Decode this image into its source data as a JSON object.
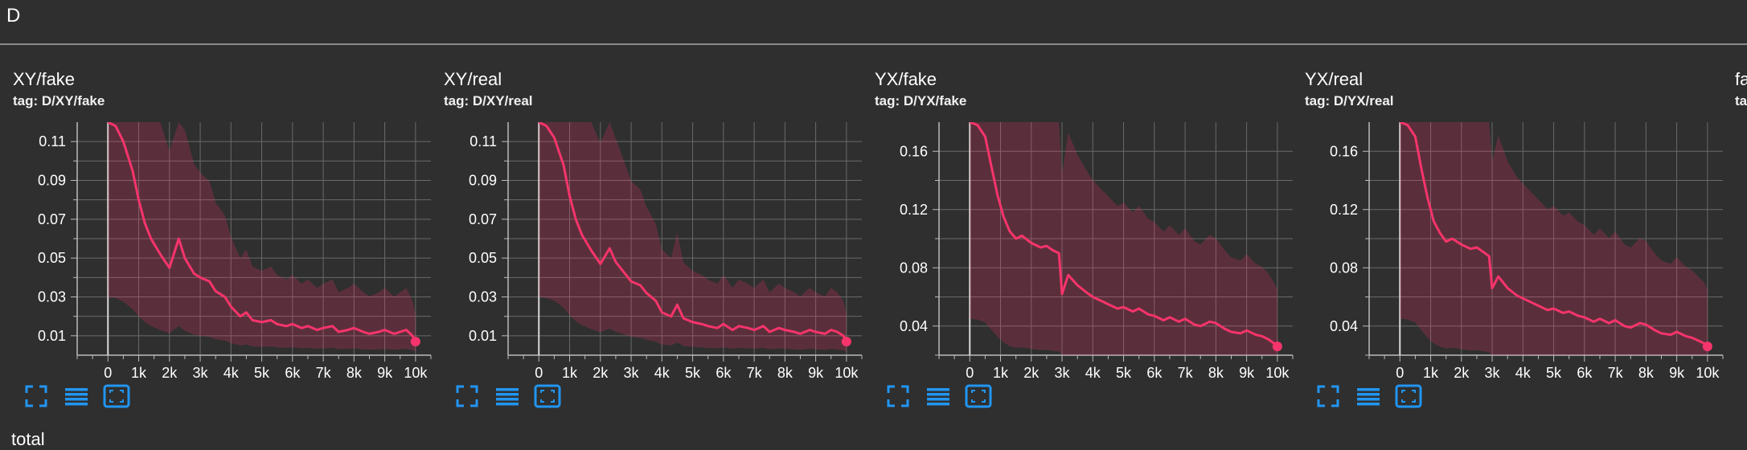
{
  "group": {
    "title": "D"
  },
  "next_group": {
    "title": "total"
  },
  "toolbar": {
    "icons": [
      "fullscreen-icon",
      "toggle-y-log-icon",
      "fit-domain-icon"
    ]
  },
  "colors": {
    "series": "#f7346b",
    "background": "#2f2f2f",
    "grid": "#6a6a6a",
    "toolbar_icon": "#2196f3"
  },
  "cards": [
    {
      "title": "XY/fake",
      "tag": "tag: D/XY/fake",
      "chart_data": {
        "type": "line",
        "series": [
          {
            "x": [
              0,
              250,
              500,
              800,
              1000,
              1200,
              1400,
              1700,
              2000,
              2300,
              2500,
              2800,
              3000,
              3300,
              3500,
              3800,
              4000,
              4300,
              4500,
              4700,
              5000,
              5300,
              5500,
              5800,
              6000,
              6300,
              6500,
              6800,
              7000,
              7300,
              7500,
              7800,
              8000,
              8300,
              8500,
              8800,
              9000,
              9300,
              9500,
              9700,
              9900,
              10000
            ],
            "y": [
              0.12,
              0.118,
              0.11,
              0.095,
              0.08,
              0.068,
              0.06,
              0.052,
              0.045,
              0.06,
              0.05,
              0.042,
              0.04,
              0.038,
              0.033,
              0.03,
              0.025,
              0.02,
              0.022,
              0.018,
              0.017,
              0.018,
              0.016,
              0.015,
              0.016,
              0.014,
              0.015,
              0.013,
              0.014,
              0.015,
              0.012,
              0.013,
              0.014,
              0.012,
              0.011,
              0.012,
              0.013,
              0.011,
              0.012,
              0.013,
              0.01,
              0.007
            ]
          }
        ],
        "xlim": [
          -1000,
          10500
        ],
        "ylim": [
          0.0,
          0.12
        ],
        "x_ticks": [
          0,
          1000,
          2000,
          3000,
          4000,
          5000,
          6000,
          7000,
          8000,
          9000,
          10000
        ],
        "x_tick_labels": [
          "0",
          "1k",
          "2k",
          "3k",
          "4k",
          "5k",
          "6k",
          "7k",
          "8k",
          "9k",
          "10k"
        ],
        "y_ticks": [
          0.01,
          0.03,
          0.05,
          0.07,
          0.09,
          0.11
        ],
        "y_tick_labels": [
          "0.01",
          "0.03",
          "0.05",
          "0.07",
          "0.09",
          "0.11"
        ],
        "y_minor_ticks": [
          0.02,
          0.04,
          0.06,
          0.08,
          0.1
        ],
        "grid": true
      }
    },
    {
      "title": "XY/real",
      "tag": "tag: D/XY/real",
      "chart_data": {
        "type": "line",
        "series": [
          {
            "x": [
              0,
              250,
              500,
              800,
              1000,
              1200,
              1400,
              1700,
              2000,
              2300,
              2500,
              2800,
              3000,
              3300,
              3500,
              3800,
              4000,
              4300,
              4500,
              4700,
              5000,
              5300,
              5500,
              5800,
              6000,
              6300,
              6500,
              6800,
              7000,
              7300,
              7500,
              7800,
              8000,
              8300,
              8500,
              8800,
              9000,
              9300,
              9500,
              9700,
              9900,
              10000
            ],
            "y": [
              0.12,
              0.118,
              0.112,
              0.098,
              0.082,
              0.07,
              0.062,
              0.054,
              0.047,
              0.055,
              0.048,
              0.042,
              0.038,
              0.036,
              0.032,
              0.028,
              0.022,
              0.02,
              0.026,
              0.019,
              0.017,
              0.016,
              0.015,
              0.014,
              0.016,
              0.013,
              0.015,
              0.014,
              0.013,
              0.015,
              0.012,
              0.014,
              0.013,
              0.012,
              0.011,
              0.013,
              0.012,
              0.011,
              0.013,
              0.012,
              0.01,
              0.007
            ]
          }
        ],
        "xlim": [
          -1000,
          10500
        ],
        "ylim": [
          0.0,
          0.12
        ],
        "x_ticks": [
          0,
          1000,
          2000,
          3000,
          4000,
          5000,
          6000,
          7000,
          8000,
          9000,
          10000
        ],
        "x_tick_labels": [
          "0",
          "1k",
          "2k",
          "3k",
          "4k",
          "5k",
          "6k",
          "7k",
          "8k",
          "9k",
          "10k"
        ],
        "y_ticks": [
          0.01,
          0.03,
          0.05,
          0.07,
          0.09,
          0.11
        ],
        "y_tick_labels": [
          "0.01",
          "0.03",
          "0.05",
          "0.07",
          "0.09",
          "0.11"
        ],
        "y_minor_ticks": [
          0.02,
          0.04,
          0.06,
          0.08,
          0.1
        ],
        "grid": true
      }
    },
    {
      "title": "YX/fake",
      "tag": "tag: D/YX/fake",
      "chart_data": {
        "type": "line",
        "series": [
          {
            "x": [
              0,
              250,
              500,
              700,
              900,
              1100,
              1300,
              1500,
              1700,
              2000,
              2300,
              2500,
              2700,
              2900,
              3000,
              3200,
              3500,
              3800,
              4000,
              4300,
              4500,
              4800,
              5000,
              5300,
              5500,
              5800,
              6000,
              6300,
              6500,
              6800,
              7000,
              7300,
              7500,
              7800,
              8000,
              8300,
              8500,
              8800,
              9000,
              9300,
              9500,
              9700,
              9900,
              10000
            ],
            "y": [
              0.18,
              0.178,
              0.17,
              0.15,
              0.13,
              0.115,
              0.105,
              0.1,
              0.102,
              0.097,
              0.094,
              0.095,
              0.092,
              0.09,
              0.062,
              0.075,
              0.068,
              0.063,
              0.06,
              0.057,
              0.055,
              0.052,
              0.053,
              0.05,
              0.052,
              0.048,
              0.047,
              0.044,
              0.046,
              0.043,
              0.045,
              0.041,
              0.04,
              0.043,
              0.042,
              0.038,
              0.036,
              0.035,
              0.037,
              0.034,
              0.033,
              0.031,
              0.028,
              0.026
            ]
          }
        ],
        "xlim": [
          -1000,
          10500
        ],
        "ylim": [
          0.02,
          0.18
        ],
        "x_ticks": [
          0,
          1000,
          2000,
          3000,
          4000,
          5000,
          6000,
          7000,
          8000,
          9000,
          10000
        ],
        "x_tick_labels": [
          "0",
          "1k",
          "2k",
          "3k",
          "4k",
          "5k",
          "6k",
          "7k",
          "8k",
          "9k",
          "10k"
        ],
        "y_ticks": [
          0.04,
          0.08,
          0.12,
          0.16
        ],
        "y_tick_labels": [
          "0.04",
          "0.08",
          "0.12",
          "0.16"
        ],
        "y_minor_ticks": [
          0.02,
          0.06,
          0.1,
          0.14
        ],
        "grid": true
      }
    },
    {
      "title": "YX/real",
      "tag": "tag: D/YX/real",
      "chart_data": {
        "type": "line",
        "series": [
          {
            "x": [
              0,
              250,
              500,
              700,
              900,
              1100,
              1300,
              1500,
              1700,
              2000,
              2300,
              2500,
              2700,
              2900,
              3000,
              3200,
              3500,
              3800,
              4000,
              4300,
              4500,
              4800,
              5000,
              5300,
              5500,
              5800,
              6000,
              6300,
              6500,
              6800,
              7000,
              7300,
              7500,
              7800,
              8000,
              8300,
              8500,
              8800,
              9000,
              9300,
              9500,
              9700,
              9900,
              10000
            ],
            "y": [
              0.18,
              0.178,
              0.17,
              0.148,
              0.128,
              0.112,
              0.104,
              0.098,
              0.1,
              0.096,
              0.093,
              0.094,
              0.091,
              0.088,
              0.066,
              0.074,
              0.066,
              0.061,
              0.059,
              0.056,
              0.054,
              0.051,
              0.052,
              0.049,
              0.05,
              0.047,
              0.046,
              0.043,
              0.045,
              0.042,
              0.044,
              0.04,
              0.039,
              0.042,
              0.041,
              0.037,
              0.035,
              0.034,
              0.036,
              0.033,
              0.032,
              0.03,
              0.028,
              0.026
            ]
          }
        ],
        "xlim": [
          -1000,
          10500
        ],
        "ylim": [
          0.02,
          0.18
        ],
        "x_ticks": [
          0,
          1000,
          2000,
          3000,
          4000,
          5000,
          6000,
          7000,
          8000,
          9000,
          10000
        ],
        "x_tick_labels": [
          "0",
          "1k",
          "2k",
          "3k",
          "4k",
          "5k",
          "6k",
          "7k",
          "8k",
          "9k",
          "10k"
        ],
        "y_ticks": [
          0.04,
          0.08,
          0.12,
          0.16
        ],
        "y_tick_labels": [
          "0.04",
          "0.08",
          "0.12",
          "0.16"
        ],
        "y_minor_ticks": [
          0.02,
          0.06,
          0.1,
          0.14
        ],
        "grid": true
      }
    },
    {
      "title": "fa",
      "tag": "tag",
      "partial": true
    }
  ]
}
